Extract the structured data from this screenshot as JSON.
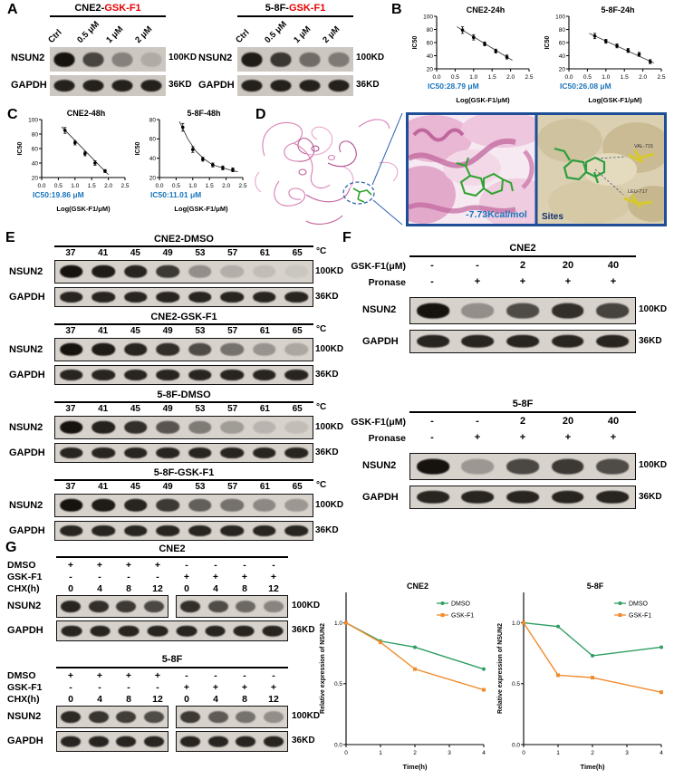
{
  "common": {
    "nsun2": "NSUN2",
    "gapdh": "GAPDH",
    "kd100": "100KD",
    "kd36": "36KD",
    "degc": "°C"
  },
  "colors": {
    "red_title": "#e60000",
    "ic50_blue": "#1a75bc",
    "dmso_green": "#2e9e62",
    "gskf1_orange": "#f08c2e",
    "zoom_box_border": "#1f4e96"
  },
  "panelA": {
    "label": "A",
    "blots": [
      {
        "title_black": "CNE2-",
        "title_red": "GSK-F1",
        "lanes": [
          "Ctrl",
          "0.5 μM",
          "1 μM",
          "2 μM"
        ],
        "nsun2_bands": [
          1,
          0.72,
          0.38,
          0.15
        ],
        "gapdh_bands": [
          0.92,
          0.92,
          0.92,
          0.92
        ]
      },
      {
        "title_black": "5-8F-",
        "title_red": "GSK-F1",
        "lanes": [
          "Ctrl",
          "0.5 μM",
          "1 μM",
          "2 μM"
        ],
        "nsun2_bands": [
          0.95,
          0.8,
          0.5,
          0.42
        ],
        "gapdh_bands": [
          0.92,
          0.92,
          0.92,
          0.92
        ]
      }
    ]
  },
  "panelB": {
    "label": "B"
  },
  "panelC": {
    "label": "C"
  },
  "panelD": {
    "label": "D",
    "energy": "-7.73Kcal/mol",
    "sites": "Sites",
    "residues": [
      "VAL-715",
      "LEU-717"
    ]
  },
  "panelE": {
    "label": "E",
    "temps": [
      "37",
      "41",
      "45",
      "49",
      "53",
      "57",
      "61",
      "65"
    ],
    "groups": [
      {
        "title": "CNE2-DMSO",
        "nsun2_bands": [
          1,
          0.95,
          0.9,
          0.8,
          0.35,
          0.18,
          0.1,
          0.06
        ],
        "gapdh_bands": [
          0.9,
          0.9,
          0.9,
          0.9,
          0.9,
          0.9,
          0.9,
          0.9
        ]
      },
      {
        "title": "CNE2-GSK-F1",
        "nsun2_bands": [
          1,
          0.95,
          0.9,
          0.85,
          0.7,
          0.5,
          0.32,
          0.22
        ],
        "gapdh_bands": [
          0.9,
          0.9,
          0.9,
          0.9,
          0.9,
          0.9,
          0.9,
          0.9
        ]
      },
      {
        "title": "5-8F-DMSO",
        "nsun2_bands": [
          1,
          0.92,
          0.85,
          0.65,
          0.45,
          0.28,
          0.15,
          0.1
        ],
        "gapdh_bands": [
          0.9,
          0.9,
          0.9,
          0.9,
          0.9,
          0.9,
          0.9,
          0.9
        ]
      },
      {
        "title": "5-8F-GSK-F1",
        "nsun2_bands": [
          1,
          0.95,
          0.9,
          0.8,
          0.6,
          0.5,
          0.38,
          0.3
        ],
        "gapdh_bands": [
          0.9,
          0.9,
          0.9,
          0.9,
          0.9,
          0.9,
          0.9,
          0.9
        ]
      }
    ]
  },
  "panelF": {
    "label": "F",
    "row_labels": {
      "gsk": "GSK-F1(μM)",
      "pronase": "Pronase"
    },
    "groups": [
      {
        "title": "CNE2",
        "gsk_values": [
          "-",
          "-",
          "2",
          "20",
          "40"
        ],
        "pronase_values": [
          "-",
          "+",
          "+",
          "+",
          "+"
        ],
        "nsun2_bands": [
          1,
          0.35,
          0.7,
          0.85,
          0.75
        ],
        "gapdh_bands": [
          0.9,
          0.9,
          0.9,
          0.9,
          0.9
        ]
      },
      {
        "title": "5-8F",
        "gsk_values": [
          "-",
          "-",
          "2",
          "20",
          "40"
        ],
        "pronase_values": [
          "-",
          "+",
          "+",
          "+",
          "+"
        ],
        "nsun2_bands": [
          1,
          0.3,
          0.72,
          0.8,
          0.7
        ],
        "gapdh_bands": [
          0.9,
          0.9,
          0.9,
          0.9,
          0.9
        ]
      }
    ]
  },
  "panelG": {
    "label": "G",
    "row_labels": {
      "dmso": "DMSO",
      "gsk": "GSK-F1",
      "chx": "CHX(h)"
    },
    "groups": [
      {
        "title": "CNE2",
        "dmso_values": [
          "+",
          "+",
          "+",
          "+",
          "-",
          "-",
          "-",
          "-"
        ],
        "gsk_values": [
          "-",
          "-",
          "-",
          "-",
          "+",
          "+",
          "+",
          "+"
        ],
        "chx_values": [
          "0",
          "4",
          "8",
          "12",
          "0",
          "4",
          "8",
          "12"
        ],
        "nsun2_left": [
          0.9,
          0.85,
          0.8,
          0.72
        ],
        "nsun2_right": [
          0.85,
          0.7,
          0.55,
          0.4
        ],
        "gapdh_bands": [
          0.9,
          0.9,
          0.9,
          0.9,
          0.9,
          0.9,
          0.9,
          0.9
        ]
      },
      {
        "title": "5-8F",
        "dmso_values": [
          "+",
          "+",
          "+",
          "+",
          "-",
          "-",
          "-",
          "-"
        ],
        "gsk_values": [
          "-",
          "-",
          "-",
          "-",
          "+",
          "+",
          "+",
          "+"
        ],
        "chx_values": [
          "0",
          "4",
          "8",
          "12",
          "0",
          "4",
          "8",
          "12"
        ],
        "nsun2_left": [
          0.88,
          0.82,
          0.78,
          0.7
        ],
        "nsun2_right": [
          0.8,
          0.62,
          0.5,
          0.35
        ],
        "gapdh_left": [
          0.9,
          0.9,
          0.9,
          0.9
        ],
        "gapdh_right": [
          0.9,
          0.9,
          0.9,
          0.9
        ]
      }
    ]
  },
  "chart_data": [
    {
      "id": "B1",
      "type": "scatter",
      "title": "CNE2-24h",
      "xlabel": "Log(GSK-F1/μM)",
      "ylabel": "IC50",
      "annotation": "IC50:28.79 μM",
      "annotation_color": "#1a75bc",
      "xlim": [
        0,
        2.5
      ],
      "ylim": [
        20,
        100
      ],
      "xticks": [
        0,
        0.5,
        1,
        1.5,
        2,
        2.5
      ],
      "xticklabels": [
        "0.0",
        "0.5",
        "1.0",
        "1.5",
        "2.0",
        "2.5"
      ],
      "yticks": [
        20,
        40,
        60,
        80,
        100
      ],
      "yticklabels": [
        "20",
        "40",
        "60",
        "80",
        "100"
      ],
      "x": [
        0.7,
        1.0,
        1.3,
        1.6,
        1.9
      ],
      "y": [
        79,
        68,
        58,
        47,
        38
      ],
      "yerr": [
        5,
        4,
        3,
        3,
        3
      ],
      "fit": [
        [
          0.55,
          84
        ],
        [
          2.05,
          33
        ]
      ]
    },
    {
      "id": "B2",
      "type": "scatter",
      "title": "5-8F-24h",
      "xlabel": "Log(GSK-F1/μM)",
      "ylabel": "IC50",
      "annotation": "IC50:26.08 μM",
      "annotation_color": "#1a75bc",
      "xlim": [
        0,
        2.5
      ],
      "ylim": [
        20,
        100
      ],
      "xticks": [
        0,
        0.5,
        1,
        1.5,
        2,
        2.5
      ],
      "xticklabels": [
        "0.0",
        "0.5",
        "1.0",
        "1.5",
        "2.0",
        "2.5"
      ],
      "yticks": [
        20,
        40,
        60,
        80,
        100
      ],
      "yticklabels": [
        "20",
        "40",
        "60",
        "80",
        "100"
      ],
      "x": [
        0.7,
        1.0,
        1.3,
        1.6,
        1.9,
        2.2
      ],
      "y": [
        70,
        62,
        55,
        48,
        42,
        31
      ],
      "yerr": [
        4,
        3,
        3,
        3,
        3,
        3
      ],
      "fit": [
        [
          0.55,
          74
        ],
        [
          2.3,
          29
        ]
      ]
    },
    {
      "id": "C1",
      "type": "scatter",
      "title": "CNE2-48h",
      "xlabel": "Log(GSK-F1/μM)",
      "ylabel": "IC50",
      "annotation": "IC50:19.86 μM",
      "annotation_color": "#1a75bc",
      "xlim": [
        0,
        2.5
      ],
      "ylim": [
        20,
        100
      ],
      "xticks": [
        0,
        0.5,
        1,
        1.5,
        2,
        2.5
      ],
      "xticklabels": [
        "0.0",
        "0.5",
        "1.0",
        "1.5",
        "2.0",
        "2.5"
      ],
      "yticks": [
        20,
        40,
        60,
        80,
        100
      ],
      "yticklabels": [
        "20",
        "40",
        "60",
        "80",
        "100"
      ],
      "x": [
        0.7,
        1.0,
        1.3,
        1.6,
        1.9
      ],
      "y": [
        85,
        68,
        53,
        40,
        29
      ],
      "yerr": [
        4,
        3,
        3,
        3,
        2
      ],
      "fit": [
        [
          0.6,
          90
        ],
        [
          2.0,
          24
        ]
      ]
    },
    {
      "id": "C2",
      "type": "scatter",
      "title": "5-8F-48h",
      "xlabel": "Log(GSK-F1/μM)",
      "ylabel": "IC50",
      "annotation": "IC50:11.01 μM",
      "annotation_color": "#1a75bc",
      "xlim": [
        0,
        2.5
      ],
      "ylim": [
        20,
        80
      ],
      "xticks": [
        0,
        0.5,
        1,
        1.5,
        2,
        2.5
      ],
      "xticklabels": [
        "0.0",
        "0.5",
        "1.0",
        "1.5",
        "2.0",
        "2.5"
      ],
      "yticks": [
        20,
        40,
        60,
        80
      ],
      "yticklabels": [
        "20",
        "40",
        "60",
        "80"
      ],
      "x": [
        0.7,
        1.0,
        1.3,
        1.6,
        1.9,
        2.2
      ],
      "y": [
        72,
        49,
        39,
        33,
        30,
        28
      ],
      "yerr": [
        4,
        3,
        2,
        2,
        2,
        2
      ],
      "fit": [
        [
          0.6,
          78
        ],
        [
          0.85,
          60
        ],
        [
          1.1,
          47
        ],
        [
          1.35,
          39
        ],
        [
          1.6,
          33
        ],
        [
          1.9,
          30
        ],
        [
          2.2,
          27
        ],
        [
          2.35,
          26
        ]
      ]
    },
    {
      "id": "G1",
      "type": "line",
      "title": "CNE2",
      "xlabel": "Time(h)",
      "ylabel": "Relative expression of NSUN2",
      "xlim": [
        0,
        4
      ],
      "ylim": [
        0,
        1.25
      ],
      "xticks": [
        0,
        1,
        2,
        3,
        4
      ],
      "xticklabels": [
        "0",
        "1",
        "2",
        "3",
        "4"
      ],
      "yticks": [
        0,
        0.5,
        1.0
      ],
      "yticklabels": [
        "0.0",
        "0.5",
        "1.0"
      ],
      "legend": true,
      "series": [
        {
          "name": "DMSO",
          "color": "#2e9e62",
          "marker": "circle",
          "x": [
            0,
            1,
            2,
            4
          ],
          "y": [
            1.0,
            0.85,
            0.8,
            0.62
          ]
        },
        {
          "name": "GSK-F1",
          "color": "#f08c2e",
          "marker": "square",
          "x": [
            0,
            1,
            2,
            4
          ],
          "y": [
            1.0,
            0.84,
            0.62,
            0.45
          ]
        }
      ]
    },
    {
      "id": "G2",
      "type": "line",
      "title": "5-8F",
      "xlabel": "Time(h)",
      "ylabel": "Relative expression of NSUN2",
      "xlim": [
        0,
        4
      ],
      "ylim": [
        0,
        1.25
      ],
      "xticks": [
        0,
        1,
        2,
        3,
        4
      ],
      "xticklabels": [
        "0",
        "1",
        "2",
        "3",
        "4"
      ],
      "yticks": [
        0,
        0.5,
        1.0
      ],
      "yticklabels": [
        "0.0",
        "0.5",
        "1.0"
      ],
      "legend": true,
      "series": [
        {
          "name": "DMSO",
          "color": "#2e9e62",
          "marker": "circle",
          "x": [
            0,
            1,
            2,
            4
          ],
          "y": [
            1.0,
            0.97,
            0.73,
            0.8
          ]
        },
        {
          "name": "GSK-F1",
          "color": "#f08c2e",
          "marker": "square",
          "x": [
            0,
            1,
            2,
            4
          ],
          "y": [
            1.0,
            0.57,
            0.55,
            0.43
          ]
        }
      ]
    }
  ]
}
